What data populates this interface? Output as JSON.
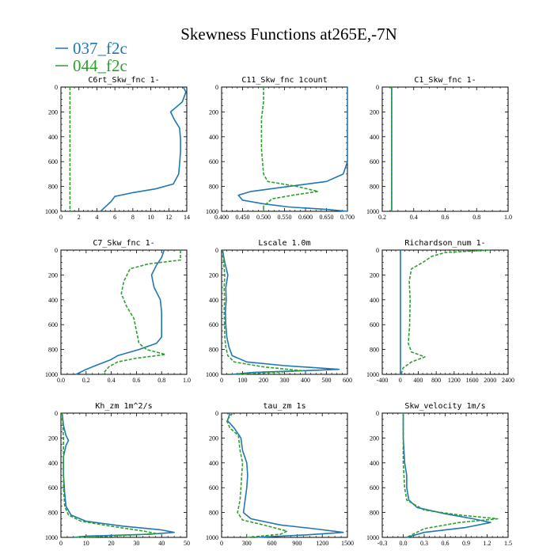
{
  "figure": {
    "title": "Skewness Functions at265E,-7N",
    "legend": [
      {
        "name": "037_f2c",
        "color": "#1f77b4",
        "dash": "none"
      },
      {
        "name": "044_f2c",
        "color": "#2ca02c",
        "dash": "4,2"
      }
    ]
  },
  "chart_data": [
    {
      "type": "line",
      "title": "C6rt_Skw_fnc   1-",
      "xlim": [
        0,
        14
      ],
      "xticks": [
        "0",
        "2",
        "4",
        "6",
        "8",
        "10",
        "12",
        "14"
      ],
      "ylim": [
        1000,
        0
      ],
      "yticks": [
        "0",
        "200",
        "400",
        "600",
        "800",
        "1000"
      ],
      "series": [
        {
          "name": "037_f2c",
          "points": [
            [
              13.6,
              0
            ],
            [
              13.9,
              40
            ],
            [
              13.5,
              120
            ],
            [
              12.2,
              200
            ],
            [
              12.6,
              260
            ],
            [
              13.2,
              330
            ],
            [
              13.3,
              420
            ],
            [
              13.3,
              520
            ],
            [
              13.2,
              620
            ],
            [
              13.1,
              700
            ],
            [
              12.5,
              780
            ],
            [
              10.5,
              820
            ],
            [
              8.0,
              850
            ],
            [
              6.0,
              880
            ],
            [
              5.6,
              920
            ],
            [
              5.0,
              960
            ],
            [
              4.4,
              1000
            ]
          ]
        },
        {
          "name": "044_f2c",
          "points": [
            [
              1.0,
              0
            ],
            [
              1.0,
              500
            ],
            [
              1.0,
              1000
            ]
          ]
        }
      ]
    },
    {
      "type": "line",
      "title": "C11_Skw_fnc   1count",
      "xlim": [
        0.4,
        0.7
      ],
      "xticks": [
        "0.400",
        "0.450",
        "0.500",
        "0.550",
        "0.600",
        "0.650",
        "0.700"
      ],
      "ylim": [
        1000,
        0
      ],
      "yticks": [
        "0",
        "200",
        "400",
        "600",
        "800",
        "1000"
      ],
      "series": [
        {
          "name": "037_f2c",
          "points": [
            [
              0.7,
              0
            ],
            [
              0.7,
              600
            ],
            [
              0.69,
              700
            ],
            [
              0.65,
              760
            ],
            [
              0.56,
              800
            ],
            [
              0.47,
              840
            ],
            [
              0.44,
              870
            ],
            [
              0.45,
              910
            ],
            [
              0.5,
              940
            ],
            [
              0.56,
              965
            ],
            [
              0.65,
              985
            ],
            [
              0.7,
              1000
            ]
          ]
        },
        {
          "name": "044_f2c",
          "points": [
            [
              0.5,
              0
            ],
            [
              0.5,
              120
            ],
            [
              0.495,
              250
            ],
            [
              0.495,
              500
            ],
            [
              0.5,
              700
            ],
            [
              0.51,
              760
            ],
            [
              0.58,
              800
            ],
            [
              0.63,
              840
            ],
            [
              0.57,
              870
            ],
            [
              0.52,
              900
            ],
            [
              0.5,
              960
            ],
            [
              0.5,
              1000
            ]
          ]
        }
      ]
    },
    {
      "type": "line",
      "title": "C1_Skw_fnc   1-",
      "xlim": [
        0.2,
        1.0
      ],
      "xticks": [
        "0.2",
        "0.4",
        "0.6",
        "0.8",
        "1.0"
      ],
      "ylim": [
        1000,
        0
      ],
      "yticks": [
        "0",
        "200",
        "400",
        "600",
        "800",
        "1000"
      ],
      "series": [
        {
          "name": "037_f2c",
          "points": [
            [
              0.26,
              0
            ],
            [
              0.26,
              1000
            ]
          ]
        },
        {
          "name": "044_f2c",
          "points": [
            [
              0.26,
              0
            ],
            [
              0.26,
              1000
            ]
          ]
        }
      ]
    },
    {
      "type": "line",
      "title": "C7_Skw_fnc   1-",
      "xlim": [
        0,
        1
      ],
      "xticks": [
        "0.0",
        "0.2",
        "0.4",
        "0.6",
        "0.8",
        "1.0"
      ],
      "ylim": [
        1000,
        0
      ],
      "yticks": [
        "0",
        "200",
        "400",
        "600",
        "800",
        "1000"
      ],
      "series": [
        {
          "name": "037_f2c",
          "points": [
            [
              0.82,
              0
            ],
            [
              0.8,
              60
            ],
            [
              0.76,
              120
            ],
            [
              0.72,
              200
            ],
            [
              0.74,
              300
            ],
            [
              0.79,
              400
            ],
            [
              0.8,
              500
            ],
            [
              0.8,
              600
            ],
            [
              0.8,
              700
            ],
            [
              0.76,
              750
            ],
            [
              0.62,
              800
            ],
            [
              0.45,
              850
            ],
            [
              0.4,
              880
            ],
            [
              0.3,
              920
            ],
            [
              0.2,
              960
            ],
            [
              0.12,
              1000
            ]
          ]
        },
        {
          "name": "044_f2c",
          "points": [
            [
              0.95,
              0
            ],
            [
              0.95,
              80
            ],
            [
              0.7,
              110
            ],
            [
              0.55,
              150
            ],
            [
              0.5,
              250
            ],
            [
              0.48,
              350
            ],
            [
              0.52,
              450
            ],
            [
              0.58,
              550
            ],
            [
              0.6,
              650
            ],
            [
              0.62,
              750
            ],
            [
              0.68,
              800
            ],
            [
              0.83,
              840
            ],
            [
              0.6,
              870
            ],
            [
              0.45,
              900
            ],
            [
              0.38,
              940
            ],
            [
              0.33,
              1000
            ]
          ]
        }
      ]
    },
    {
      "type": "line",
      "title": "Lscale   1.0m",
      "xlim": [
        0,
        600
      ],
      "xticks": [
        "0",
        "100",
        "200",
        "300",
        "400",
        "500",
        "600"
      ],
      "ylim": [
        1000,
        0
      ],
      "yticks": [
        "0",
        "200",
        "400",
        "600",
        "800",
        "1000"
      ],
      "series": [
        {
          "name": "037_f2c",
          "points": [
            [
              5,
              0
            ],
            [
              15,
              100
            ],
            [
              30,
              200
            ],
            [
              20,
              300
            ],
            [
              22,
              400
            ],
            [
              18,
              500
            ],
            [
              20,
              600
            ],
            [
              25,
              700
            ],
            [
              35,
              780
            ],
            [
              50,
              850
            ],
            [
              120,
              900
            ],
            [
              300,
              930
            ],
            [
              470,
              950
            ],
            [
              560,
              960
            ],
            [
              400,
              970
            ],
            [
              150,
              985
            ],
            [
              50,
              1000
            ]
          ]
        },
        {
          "name": "044_f2c",
          "points": [
            [
              5,
              0
            ],
            [
              10,
              100
            ],
            [
              15,
              200
            ],
            [
              12,
              300
            ],
            [
              14,
              400
            ],
            [
              12,
              500
            ],
            [
              14,
              600
            ],
            [
              15,
              700
            ],
            [
              20,
              780
            ],
            [
              30,
              850
            ],
            [
              60,
              900
            ],
            [
              200,
              940
            ],
            [
              380,
              970
            ],
            [
              250,
              985
            ],
            [
              80,
              1000
            ]
          ]
        }
      ]
    },
    {
      "type": "line",
      "title": "Richardson_num   1-",
      "xlim": [
        -400,
        2400
      ],
      "xticks": [
        "-400",
        "0",
        "400",
        "800",
        "1200",
        "1600",
        "2000",
        "2400"
      ],
      "ylim": [
        1000,
        0
      ],
      "yticks": [
        "0",
        "200",
        "400",
        "600",
        "800",
        "1000"
      ],
      "series": [
        {
          "name": "037_f2c",
          "points": [
            [
              5,
              0
            ],
            [
              5,
              500
            ],
            [
              5,
              1000
            ]
          ]
        },
        {
          "name": "044_f2c",
          "points": [
            [
              2000,
              0
            ],
            [
              1000,
              20
            ],
            [
              700,
              50
            ],
            [
              500,
              100
            ],
            [
              250,
              150
            ],
            [
              200,
              250
            ],
            [
              220,
              400
            ],
            [
              210,
              600
            ],
            [
              180,
              750
            ],
            [
              250,
              820
            ],
            [
              550,
              860
            ],
            [
              250,
              900
            ],
            [
              60,
              950
            ],
            [
              20,
              1000
            ]
          ]
        }
      ]
    },
    {
      "type": "line",
      "title": "Kh_zm   1m^2/s",
      "xlim": [
        0,
        50
      ],
      "xticks": [
        "0",
        "10",
        "20",
        "30",
        "40",
        "50"
      ],
      "ylim": [
        1000,
        0
      ],
      "yticks": [
        "0",
        "200",
        "400",
        "600",
        "800",
        "1000"
      ],
      "series": [
        {
          "name": "037_f2c",
          "points": [
            [
              0.5,
              0
            ],
            [
              1,
              100
            ],
            [
              2,
              180
            ],
            [
              3,
              220
            ],
            [
              2,
              260
            ],
            [
              1,
              350
            ],
            [
              1,
              500
            ],
            [
              1.5,
              650
            ],
            [
              2,
              750
            ],
            [
              4,
              820
            ],
            [
              10,
              870
            ],
            [
              25,
              910
            ],
            [
              40,
              940
            ],
            [
              45,
              960
            ],
            [
              35,
              975
            ],
            [
              10,
              990
            ],
            [
              5,
              1000
            ]
          ]
        },
        {
          "name": "044_f2c",
          "points": [
            [
              0.5,
              0
            ],
            [
              1,
              200
            ],
            [
              1,
              400
            ],
            [
              1,
              600
            ],
            [
              1.5,
              750
            ],
            [
              3,
              820
            ],
            [
              8,
              870
            ],
            [
              20,
              910
            ],
            [
              33,
              950
            ],
            [
              38,
              970
            ],
            [
              20,
              990
            ],
            [
              5,
              1000
            ]
          ]
        }
      ]
    },
    {
      "type": "line",
      "title": "tau_zm   1s",
      "xlim": [
        0,
        1500
      ],
      "xticks": [
        "0",
        "300",
        "600",
        "900",
        "1200",
        "1500"
      ],
      "ylim": [
        1000,
        0
      ],
      "yticks": [
        "0",
        "200",
        "400",
        "600",
        "800",
        "1000"
      ],
      "series": [
        {
          "name": "037_f2c",
          "points": [
            [
              100,
              0
            ],
            [
              70,
              60
            ],
            [
              150,
              120
            ],
            [
              230,
              200
            ],
            [
              250,
              300
            ],
            [
              300,
              400
            ],
            [
              310,
              500
            ],
            [
              300,
              600
            ],
            [
              280,
              700
            ],
            [
              260,
              800
            ],
            [
              350,
              850
            ],
            [
              700,
              900
            ],
            [
              1100,
              930
            ],
            [
              1450,
              960
            ],
            [
              1000,
              980
            ],
            [
              400,
              1000
            ]
          ]
        },
        {
          "name": "044_f2c",
          "points": [
            [
              130,
              0
            ],
            [
              60,
              60
            ],
            [
              100,
              120
            ],
            [
              200,
              180
            ],
            [
              220,
              300
            ],
            [
              250,
              400
            ],
            [
              240,
              500
            ],
            [
              230,
              600
            ],
            [
              220,
              700
            ],
            [
              190,
              800
            ],
            [
              250,
              860
            ],
            [
              500,
              900
            ],
            [
              780,
              950
            ],
            [
              700,
              975
            ],
            [
              300,
              1000
            ]
          ]
        }
      ]
    },
    {
      "type": "line",
      "title": "Skw_velocity   1m/s",
      "xlim": [
        -0.3,
        1.5
      ],
      "xticks": [
        "-0.3",
        "0.0",
        "0.3",
        "0.6",
        "0.9",
        "1.2",
        "1.5"
      ],
      "ylim": [
        1000,
        0
      ],
      "yticks": [
        "0",
        "200",
        "400",
        "600",
        "800",
        "1000"
      ],
      "series": [
        {
          "name": "037_f2c",
          "points": [
            [
              0.0,
              0
            ],
            [
              0.0,
              200
            ],
            [
              0.02,
              400
            ],
            [
              0.05,
              500
            ],
            [
              0.05,
              600
            ],
            [
              0.08,
              700
            ],
            [
              0.2,
              760
            ],
            [
              0.6,
              810
            ],
            [
              1.0,
              850
            ],
            [
              1.25,
              880
            ],
            [
              0.9,
              920
            ],
            [
              0.3,
              960
            ],
            [
              0.05,
              1000
            ]
          ]
        },
        {
          "name": "044_f2c",
          "points": [
            [
              0.0,
              0
            ],
            [
              0.0,
              200
            ],
            [
              0.0,
              400
            ],
            [
              0.02,
              600
            ],
            [
              0.05,
              700
            ],
            [
              0.3,
              780
            ],
            [
              0.8,
              820
            ],
            [
              1.35,
              850
            ],
            [
              0.8,
              880
            ],
            [
              0.3,
              930
            ],
            [
              0.05,
              1000
            ]
          ]
        }
      ]
    }
  ]
}
